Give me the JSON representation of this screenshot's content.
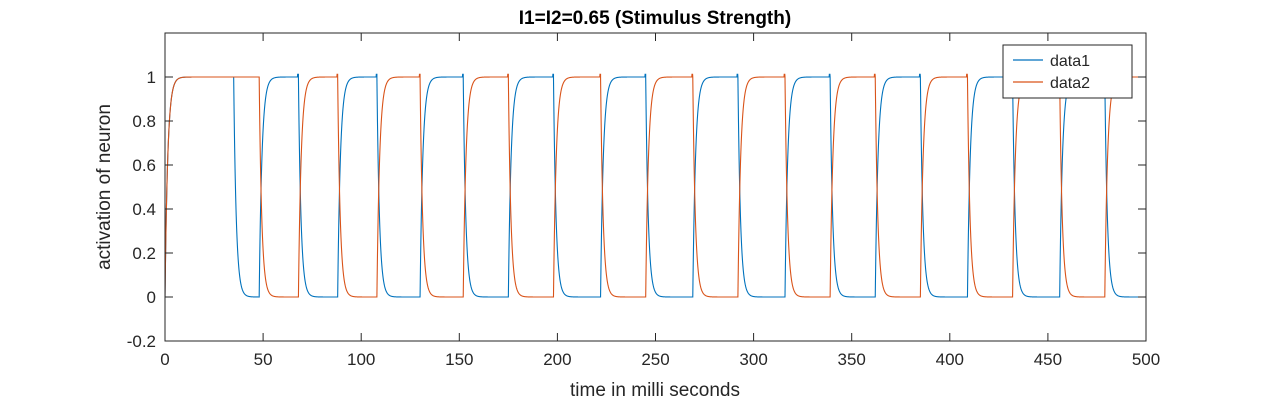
{
  "chart_data": {
    "type": "line",
    "title": "I1=I2=0.65 (Stimulus Strength)",
    "xlabel": "time in milli seconds",
    "ylabel": "activation of neuron",
    "xlim": [
      0,
      500
    ],
    "ylim": [
      -0.2,
      1.2
    ],
    "xticks": [
      "0",
      "50",
      "100",
      "150",
      "200",
      "250",
      "300",
      "350",
      "400",
      "450",
      "500"
    ],
    "yticks": [
      "-0.2",
      "0",
      "0.2",
      "0.4",
      "0.6",
      "0.8",
      "1"
    ],
    "grid": false,
    "legend_position": "top-right",
    "series": [
      {
        "name": "data1",
        "color": "#0072BD",
        "start": 0,
        "end": 500,
        "initial_high_until": 35,
        "cycles": [
          {
            "low": [
              35,
              48
            ],
            "high": [
              48,
              68
            ]
          },
          {
            "low": [
              68,
              88
            ],
            "high": [
              88,
              108
            ]
          },
          {
            "low": [
              108,
              130
            ],
            "high": [
              130,
              152
            ]
          },
          {
            "low": [
              152,
              175
            ],
            "high": [
              175,
              198
            ]
          },
          {
            "low": [
              198,
              222
            ],
            "high": [
              222,
              245
            ]
          },
          {
            "low": [
              245,
              269
            ],
            "high": [
              269,
              292
            ]
          },
          {
            "low": [
              292,
              316
            ],
            "high": [
              316,
              339
            ]
          },
          {
            "low": [
              339,
              362
            ],
            "high": [
              362,
              385
            ]
          },
          {
            "low": [
              385,
              409
            ],
            "high": [
              409,
              432
            ]
          },
          {
            "low": [
              432,
              456
            ],
            "high": [
              456,
              479
            ]
          },
          {
            "low": [
              479,
              500
            ],
            "high": null
          }
        ]
      },
      {
        "name": "data2",
        "color": "#D95319",
        "start": 0,
        "end": 500,
        "initial_high_until": 48,
        "cycles": [
          {
            "low": [
              48,
              68
            ],
            "high": [
              68,
              88
            ]
          },
          {
            "low": [
              88,
              108
            ],
            "high": [
              108,
              130
            ]
          },
          {
            "low": [
              130,
              152
            ],
            "high": [
              152,
              175
            ]
          },
          {
            "low": [
              175,
              198
            ],
            "high": [
              198,
              222
            ]
          },
          {
            "low": [
              222,
              245
            ],
            "high": [
              245,
              269
            ]
          },
          {
            "low": [
              269,
              292
            ],
            "high": [
              292,
              316
            ]
          },
          {
            "low": [
              316,
              339
            ],
            "high": [
              339,
              362
            ]
          },
          {
            "low": [
              362,
              385
            ],
            "high": [
              385,
              409
            ]
          },
          {
            "low": [
              409,
              432
            ],
            "high": [
              432,
              456
            ]
          },
          {
            "low": [
              456,
              479
            ],
            "high": [
              479,
              500
            ]
          }
        ]
      }
    ]
  }
}
